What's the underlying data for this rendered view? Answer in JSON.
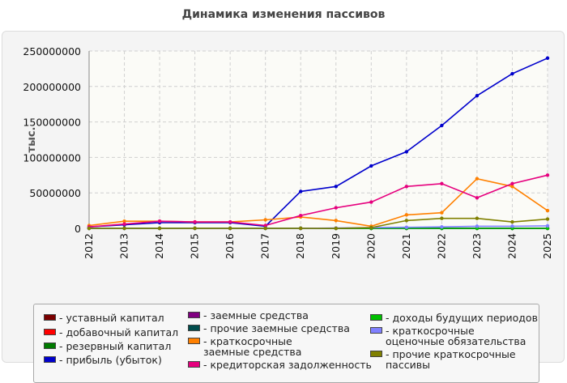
{
  "chart_data": {
    "type": "line",
    "title": "Динамика изменения пассивов",
    "ylabel": "тыс.",
    "xlabel": "",
    "x": [
      "2012",
      "2013",
      "2014",
      "2015",
      "2016",
      "2017",
      "2018",
      "2019",
      "2020",
      "2021",
      "2022",
      "2023",
      "2024",
      "2025"
    ],
    "yticks": [
      "0",
      "50000000",
      "100000000",
      "150000000",
      "200000000",
      "250000000"
    ],
    "ylim": [
      0,
      250000000
    ],
    "grid": true,
    "legend_position": "bottom",
    "series": [
      {
        "name": "- уставный капитал",
        "color": "#7a0000",
        "values": [
          20000,
          20000,
          20000,
          20000,
          20000,
          20000,
          20000,
          20000,
          20000,
          20000,
          20000,
          20000,
          20000,
          20000
        ]
      },
      {
        "name": "- добавочный капитал",
        "color": "#ff0000",
        "values": [
          0,
          0,
          0,
          0,
          0,
          0,
          0,
          0,
          0,
          0,
          0,
          0,
          0,
          0
        ]
      },
      {
        "name": "- резервный капитал",
        "color": "#007a00",
        "values": [
          0,
          0,
          0,
          0,
          0,
          0,
          0,
          0,
          0,
          0,
          0,
          0,
          0,
          0
        ]
      },
      {
        "name": "- прибыль (убыток)",
        "color": "#0000cc",
        "values": [
          2000000,
          5000000,
          8000000,
          8000000,
          8000000,
          3000000,
          52000000,
          59000000,
          88000000,
          108000000,
          145000000,
          187000000,
          218000000,
          240000000
        ]
      },
      {
        "name": "- заемные средства",
        "color": "#800080",
        "values": [
          0,
          0,
          0,
          0,
          0,
          0,
          0,
          0,
          0,
          0,
          0,
          0,
          0,
          0
        ]
      },
      {
        "name": "- прочие заемные средства",
        "color": "#004d4d",
        "values": [
          0,
          0,
          0,
          0,
          0,
          0,
          0,
          0,
          0,
          0,
          0,
          0,
          0,
          0
        ]
      },
      {
        "name": "- краткосрочные заемные средства",
        "color": "#ff8000",
        "values": [
          4000000,
          10000000,
          10000000,
          9000000,
          9000000,
          12000000,
          16000000,
          11000000,
          3000000,
          19000000,
          22000000,
          70000000,
          59000000,
          25000000
        ]
      },
      {
        "name": "- кредиторская задолженность",
        "color": "#e6007e",
        "values": [
          2000000,
          6000000,
          10000000,
          9000000,
          9000000,
          4000000,
          18000000,
          29000000,
          37000000,
          59000000,
          63000000,
          43000000,
          63000000,
          75000000
        ]
      },
      {
        "name": "- доходы будущих периодов",
        "color": "#00c000",
        "values": [
          0,
          0,
          0,
          0,
          0,
          0,
          0,
          0,
          0,
          0,
          0,
          0,
          0,
          0
        ]
      },
      {
        "name": "- краткосрочные оценочные обязательства",
        "color": "#8080ff",
        "values": [
          0,
          0,
          0,
          0,
          0,
          0,
          0,
          500000,
          1000000,
          1500000,
          2000000,
          3000000,
          3000000,
          3500000
        ]
      },
      {
        "name": "- прочие краткосрочные пассивы",
        "color": "#808000",
        "values": [
          0,
          0,
          0,
          0,
          0,
          0,
          0,
          0,
          1000000,
          11000000,
          14000000,
          14000000,
          9000000,
          13000000
        ]
      }
    ]
  }
}
